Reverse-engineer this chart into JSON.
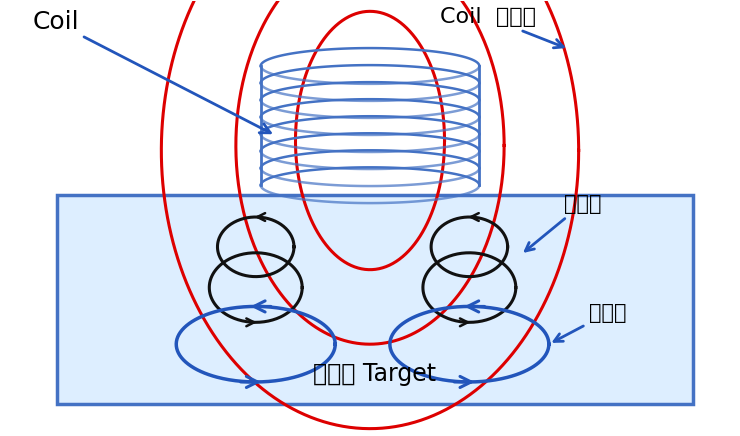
{
  "figsize": [
    7.4,
    4.36
  ],
  "dpi": 100,
  "bg_color": "#ffffff",
  "box_color": "#ddeeff",
  "box_edge_color": "#4472c4",
  "coil_color": "#4472c4",
  "field_color": "#dd0000",
  "eddy_color": "#111111",
  "emf_color": "#2255bb",
  "arrow_color": "#2255bb",
  "label_coil": "Coil",
  "label_coil_field": "Coil  電磁場",
  "label_eddy": "渦電流",
  "label_emf": "電磁場",
  "label_target": "伝導性 Target"
}
